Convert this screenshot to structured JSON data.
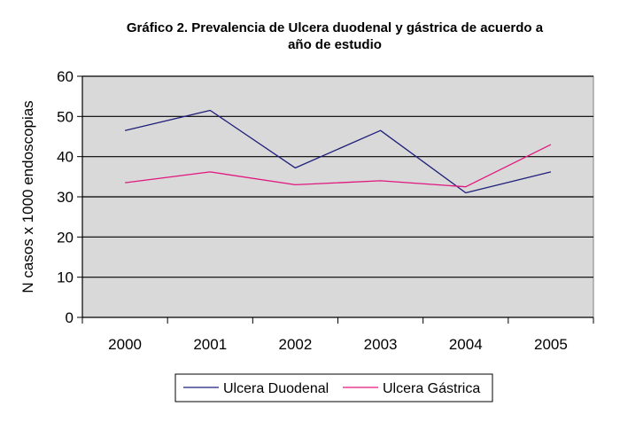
{
  "chart_data": {
    "type": "line",
    "title": "Gráfico 2. Prevalencia de Ulcera duodenal y gástrica de acuerdo a año de estudio",
    "title_lines": [
      "Gráfico 2. Prevalencia de Ulcera duodenal y gástrica de acuerdo a",
      "año de estudio"
    ],
    "xlabel": "",
    "ylabel": "N casos x 1000 endoscopias",
    "categories": [
      "2000",
      "2001",
      "2002",
      "2003",
      "2004",
      "2005"
    ],
    "ylim": [
      0,
      60
    ],
    "yticks": [
      "0",
      "10",
      "20",
      "30",
      "40",
      "50",
      "60"
    ],
    "grid": true,
    "plot_background": "#d9d9d9",
    "legend_position": "bottom",
    "series": [
      {
        "name": "Ulcera Duodenal",
        "color": "#1f1f7a",
        "values": [
          46.5,
          51.5,
          37.2,
          46.5,
          31.0,
          36.2
        ]
      },
      {
        "name": "Ulcera Gástrica",
        "color": "#e0177e",
        "values": [
          33.5,
          36.2,
          33.0,
          34.0,
          32.5,
          43.0
        ]
      }
    ]
  }
}
